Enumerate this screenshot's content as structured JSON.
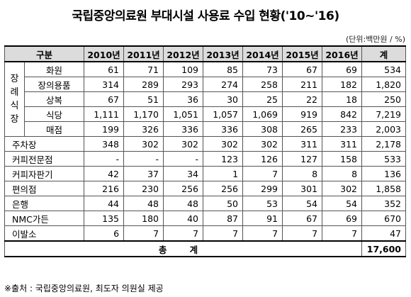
{
  "title": "국립중앙의료원 부대시설 사용료 수입 현황('10~'16)",
  "unit": "(단위:백만원 / %)",
  "headers": [
    "구분",
    "2010년",
    "2011년",
    "2012년",
    "2013년",
    "2014년",
    "2015년",
    "2016년",
    "계"
  ],
  "group_label": "장례식장",
  "group_rows": [
    {
      "label": "화원",
      "values": [
        "61",
        "71",
        "109",
        "85",
        "73",
        "67",
        "69",
        "534"
      ]
    },
    {
      "label": "장의용품",
      "values": [
        "314",
        "289",
        "293",
        "274",
        "258",
        "211",
        "182",
        "1,820"
      ]
    },
    {
      "label": "상복",
      "values": [
        "67",
        "51",
        "36",
        "30",
        "25",
        "22",
        "18",
        "250"
      ]
    },
    {
      "label": "식당",
      "values": [
        "1,111",
        "1,170",
        "1,051",
        "1,057",
        "1,069",
        "919",
        "842",
        "7,219"
      ]
    },
    {
      "label": "매점",
      "values": [
        "199",
        "326",
        "336",
        "336",
        "308",
        "265",
        "233",
        "2,003"
      ]
    }
  ],
  "rows": [
    {
      "label": "주차장",
      "values": [
        "348",
        "302",
        "302",
        "302",
        "302",
        "311",
        "311",
        "2,178"
      ]
    },
    {
      "label": "커피전문점",
      "values": [
        "-",
        "-",
        "-",
        "123",
        "126",
        "127",
        "158",
        "533"
      ]
    },
    {
      "label": "커피자판기",
      "values": [
        "42",
        "37",
        "34",
        "1",
        "7",
        "8",
        "8",
        "136"
      ]
    },
    {
      "label": "편의점",
      "values": [
        "216",
        "230",
        "256",
        "256",
        "299",
        "301",
        "302",
        "1,858"
      ]
    },
    {
      "label": "은행",
      "values": [
        "44",
        "48",
        "48",
        "50",
        "53",
        "54",
        "54",
        "352"
      ]
    },
    {
      "label": "NMC가든",
      "values": [
        "135",
        "180",
        "40",
        "87",
        "91",
        "67",
        "69",
        "670"
      ]
    },
    {
      "label": "이발소",
      "values": [
        "6",
        "7",
        "7",
        "7",
        "7",
        "7",
        "7",
        "47"
      ]
    }
  ],
  "total": {
    "label": "총 계",
    "value": "17,600"
  },
  "source": "※출처 : 국립중앙의료원, 최도자 의원실 제공"
}
